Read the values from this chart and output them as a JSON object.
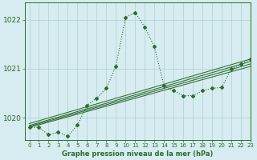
{
  "title": "Graphe pression niveau de la mer (hPa)",
  "bg_color": "#d6ecf0",
  "line_color": "#2d6a2d",
  "grid_color": "#b0cfcf",
  "xlim": [
    -0.5,
    23
  ],
  "ylim": [
    1019.55,
    1022.35
  ],
  "yticks": [
    1020,
    1021,
    1022
  ],
  "xticks": [
    0,
    1,
    2,
    3,
    4,
    5,
    6,
    7,
    8,
    9,
    10,
    11,
    12,
    13,
    14,
    15,
    16,
    17,
    18,
    19,
    20,
    21,
    22,
    23
  ],
  "dotted_x": [
    0,
    1,
    2,
    3,
    4,
    5,
    6,
    7,
    8,
    9,
    10,
    11,
    12,
    13,
    14,
    15,
    16,
    17,
    18,
    19,
    20,
    21,
    22,
    23
  ],
  "dotted_y": [
    1019.8,
    1019.8,
    1019.65,
    1019.7,
    1019.62,
    1019.85,
    1020.25,
    1020.4,
    1020.6,
    1021.05,
    1022.05,
    1022.15,
    1021.85,
    1021.45,
    1020.65,
    1020.55,
    1020.45,
    1020.45,
    1020.55,
    1020.6,
    1020.62,
    1021.0,
    1021.1,
    1021.2
  ],
  "straight_lines": [
    {
      "x": [
        0,
        23
      ],
      "y": [
        1019.8,
        1021.05
      ]
    },
    {
      "x": [
        0,
        23
      ],
      "y": [
        1019.82,
        1021.1
      ]
    },
    {
      "x": [
        0,
        23
      ],
      "y": [
        1019.84,
        1021.15
      ]
    },
    {
      "x": [
        0,
        23
      ],
      "y": [
        1019.88,
        1021.2
      ]
    }
  ]
}
